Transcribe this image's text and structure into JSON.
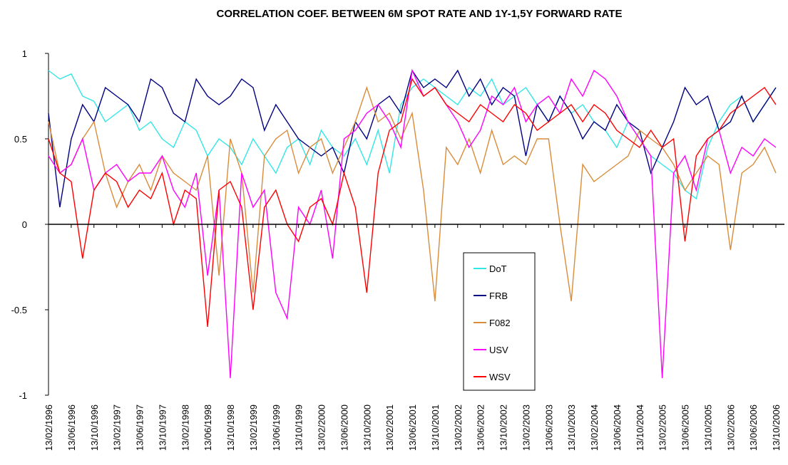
{
  "chart_data": {
    "type": "line",
    "title": "CORRELATION COEF. BETWEEN 6M SPOT RATE AND 1Y-1,5Y FORWARD RATE",
    "categories": [
      "13/02/1996",
      null,
      "13/06/1996",
      null,
      "13/10/1996",
      null,
      "13/02/1997",
      null,
      "13/06/1997",
      null,
      "13/10/1997",
      null,
      "13/02/1998",
      null,
      "13/06/1998",
      null,
      "13/10/1998",
      null,
      "13/02/1999",
      null,
      "13/06/1999",
      null,
      "13/10/1999",
      null,
      "13/02/2000",
      null,
      "13/06/2000",
      null,
      "13/10/2000",
      null,
      "13/02/2001",
      null,
      "13/06/2001",
      null,
      "13/10/2001",
      null,
      "13/02/2002",
      null,
      "13/06/2002",
      null,
      "13/10/2002",
      null,
      "13/02/2003",
      null,
      "13/06/2003",
      null,
      "13/10/2003",
      null,
      "13/02/2004",
      null,
      "13/06/2004",
      null,
      "13/10/2004",
      null,
      "13/02/2005",
      null,
      "13/06/2005",
      null,
      "13/10/2005",
      null,
      "13/02/2006",
      null,
      "13/06/2006",
      null,
      "13/10/2006"
    ],
    "series": [
      {
        "name": "DoT",
        "color": "#33e6e6",
        "values": [
          0.9,
          0.85,
          0.88,
          0.75,
          0.72,
          0.6,
          0.65,
          0.7,
          0.55,
          0.6,
          0.5,
          0.45,
          0.6,
          0.55,
          0.4,
          0.5,
          0.45,
          0.35,
          0.5,
          0.4,
          0.3,
          0.45,
          0.5,
          0.35,
          0.55,
          0.45,
          0.4,
          0.5,
          0.35,
          0.55,
          0.3,
          0.7,
          0.8,
          0.85,
          0.8,
          0.75,
          0.7,
          0.8,
          0.75,
          0.85,
          0.7,
          0.75,
          0.8,
          0.7,
          0.6,
          0.75,
          0.65,
          0.7,
          0.6,
          0.55,
          0.45,
          0.6,
          0.5,
          0.4,
          0.35,
          0.3,
          0.2,
          0.15,
          0.45,
          0.6,
          0.7,
          0.75,
          0.6,
          0.7,
          0.8
        ]
      },
      {
        "name": "FRB",
        "color": "#000080",
        "values": [
          0.65,
          0.1,
          0.5,
          0.7,
          0.6,
          0.8,
          0.75,
          0.7,
          0.6,
          0.85,
          0.8,
          0.65,
          0.6,
          0.85,
          0.75,
          0.7,
          0.75,
          0.85,
          0.8,
          0.55,
          0.7,
          0.6,
          0.5,
          0.45,
          0.4,
          0.45,
          0.3,
          0.6,
          0.5,
          0.7,
          0.75,
          0.65,
          0.9,
          0.8,
          0.85,
          0.8,
          0.9,
          0.75,
          0.85,
          0.7,
          0.8,
          0.75,
          0.4,
          0.7,
          0.6,
          0.75,
          0.65,
          0.5,
          0.6,
          0.55,
          0.7,
          0.6,
          0.55,
          0.3,
          0.45,
          0.6,
          0.8,
          0.7,
          0.75,
          0.55,
          0.6,
          0.75,
          0.6,
          0.7,
          0.8
        ]
      },
      {
        "name": "F082",
        "color": "#d98c3a",
        "values": [
          0.6,
          0.3,
          0.35,
          0.5,
          0.6,
          0.3,
          0.1,
          0.25,
          0.35,
          0.2,
          0.4,
          0.3,
          0.25,
          0.2,
          0.4,
          -0.3,
          0.5,
          0.3,
          -0.4,
          0.4,
          0.5,
          0.55,
          0.3,
          0.45,
          0.5,
          0.3,
          0.45,
          0.6,
          0.8,
          0.6,
          0.65,
          0.5,
          0.65,
          0.2,
          -0.45,
          0.45,
          0.35,
          0.5,
          0.3,
          0.55,
          0.35,
          0.4,
          0.35,
          0.5,
          0.5,
          0.0,
          -0.45,
          0.35,
          0.25,
          0.3,
          0.35,
          0.4,
          0.55,
          0.5,
          0.45,
          0.35,
          0.2,
          0.3,
          0.4,
          0.35,
          -0.15,
          0.3,
          0.35,
          0.45,
          0.3
        ]
      },
      {
        "name": "USV",
        "color": "#ff00ff",
        "values": [
          0.4,
          0.3,
          0.35,
          0.5,
          0.2,
          0.3,
          0.35,
          0.25,
          0.3,
          0.3,
          0.4,
          0.2,
          0.1,
          0.3,
          -0.3,
          0.2,
          -0.9,
          0.3,
          0.1,
          0.2,
          -0.4,
          -0.55,
          0.1,
          0.0,
          0.2,
          -0.2,
          0.5,
          0.55,
          0.65,
          0.7,
          0.6,
          0.45,
          0.9,
          0.75,
          0.8,
          0.7,
          0.6,
          0.45,
          0.55,
          0.75,
          0.7,
          0.8,
          0.6,
          0.7,
          0.75,
          0.65,
          0.85,
          0.75,
          0.9,
          0.85,
          0.75,
          0.6,
          0.5,
          0.4,
          -0.9,
          0.3,
          0.4,
          0.2,
          0.5,
          0.55,
          0.3,
          0.45,
          0.4,
          0.5,
          0.45
        ]
      },
      {
        "name": "WSV",
        "color": "#ff0000",
        "values": [
          0.5,
          0.3,
          0.25,
          -0.2,
          0.2,
          0.3,
          0.25,
          0.1,
          0.2,
          0.15,
          0.3,
          0.0,
          0.2,
          0.15,
          -0.6,
          0.2,
          0.25,
          0.1,
          -0.5,
          0.1,
          0.2,
          0.0,
          -0.1,
          0.1,
          0.15,
          0.0,
          0.3,
          0.1,
          -0.4,
          0.3,
          0.55,
          0.6,
          0.85,
          0.75,
          0.8,
          0.7,
          0.65,
          0.6,
          0.7,
          0.65,
          0.6,
          0.7,
          0.65,
          0.55,
          0.6,
          0.65,
          0.7,
          0.6,
          0.7,
          0.65,
          0.55,
          0.5,
          0.45,
          0.55,
          0.45,
          0.5,
          -0.1,
          0.4,
          0.5,
          0.55,
          0.65,
          0.7,
          0.75,
          0.8,
          0.7
        ]
      }
    ],
    "ylim": [
      -1,
      1
    ],
    "yticks": [
      -1,
      -0.5,
      0,
      0.5,
      1
    ],
    "legend": "center"
  }
}
